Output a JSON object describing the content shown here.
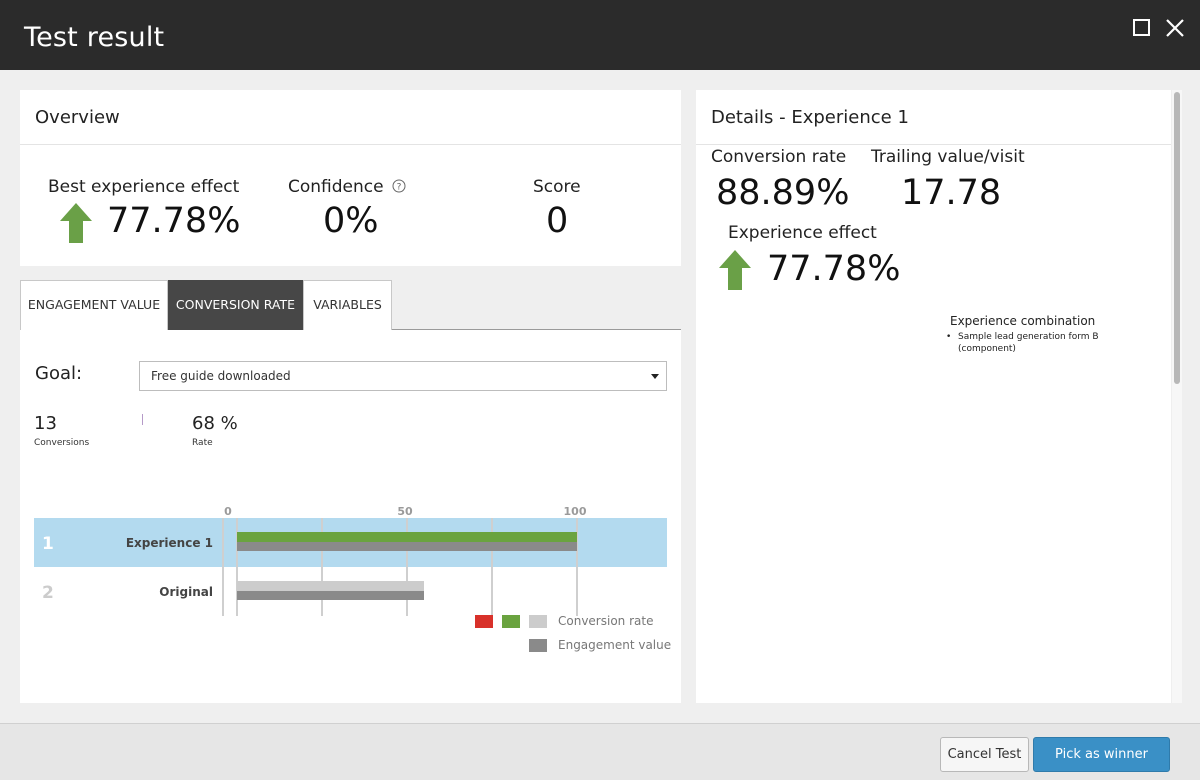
{
  "window": {
    "title": "Test result",
    "maximize_icon": "maximize-icon",
    "close_icon": "close-icon"
  },
  "overview": {
    "header": "Overview",
    "best_effect": {
      "label": "Best experience effect",
      "value": "77.78%",
      "direction": "up"
    },
    "confidence": {
      "label": "Confidence",
      "value": "0%",
      "help_icon": "question-circle-icon"
    },
    "score": {
      "label": "Score",
      "value": "0"
    }
  },
  "tabs": [
    {
      "label": "ENGAGEMENT VALUE",
      "active": false
    },
    {
      "label": "CONVERSION RATE",
      "active": true
    },
    {
      "label": "VARIABLES",
      "active": false
    }
  ],
  "goal": {
    "label": "Goal:",
    "selected": "Free guide downloaded"
  },
  "metrics": {
    "conversions": {
      "value": "13",
      "caption": "Conversions"
    },
    "rate": {
      "value": "68 %",
      "caption": "Rate"
    }
  },
  "chart_data": {
    "type": "bar",
    "orientation": "horizontal",
    "xlim": [
      0,
      100
    ],
    "x_ticks": [
      0,
      50,
      100
    ],
    "rows": [
      {
        "rank": "1",
        "name": "Experience 1",
        "highlighted": true,
        "conversion_rate": 100,
        "engagement_value": 100
      },
      {
        "rank": "2",
        "name": "Original",
        "highlighted": false,
        "conversion_rate": 55,
        "engagement_value": 55
      }
    ],
    "legend": [
      {
        "label": "Conversion rate",
        "swatches": [
          "#d8312a",
          "#6aa33f",
          "#cccccc"
        ]
      },
      {
        "label": "Engagement value",
        "swatches": [
          "#8a8a8a"
        ]
      }
    ]
  },
  "details": {
    "header": "Details - Experience 1",
    "conversion_rate": {
      "label": "Conversion rate",
      "value": "88.89%"
    },
    "trailing_value": {
      "label": "Trailing value/visit",
      "value": "17.78"
    },
    "experience_effect": {
      "label": "Experience effect",
      "value": "77.78%",
      "direction": "up"
    },
    "experience_combination": {
      "title": "Experience combination",
      "items": [
        "Sample lead generation form B (component)"
      ]
    }
  },
  "footer": {
    "cancel_label": "Cancel Test",
    "winner_label": "Pick as winner"
  },
  "colors": {
    "title_bar": "#2b2b2b",
    "arrow_up": "#6aa047",
    "highlight_row": "#b3daef",
    "bar_green": "#6aa33f",
    "bar_gray": "#8a8a8a",
    "bar_light": "#cccccc",
    "primary_button": "#3a90c6"
  }
}
